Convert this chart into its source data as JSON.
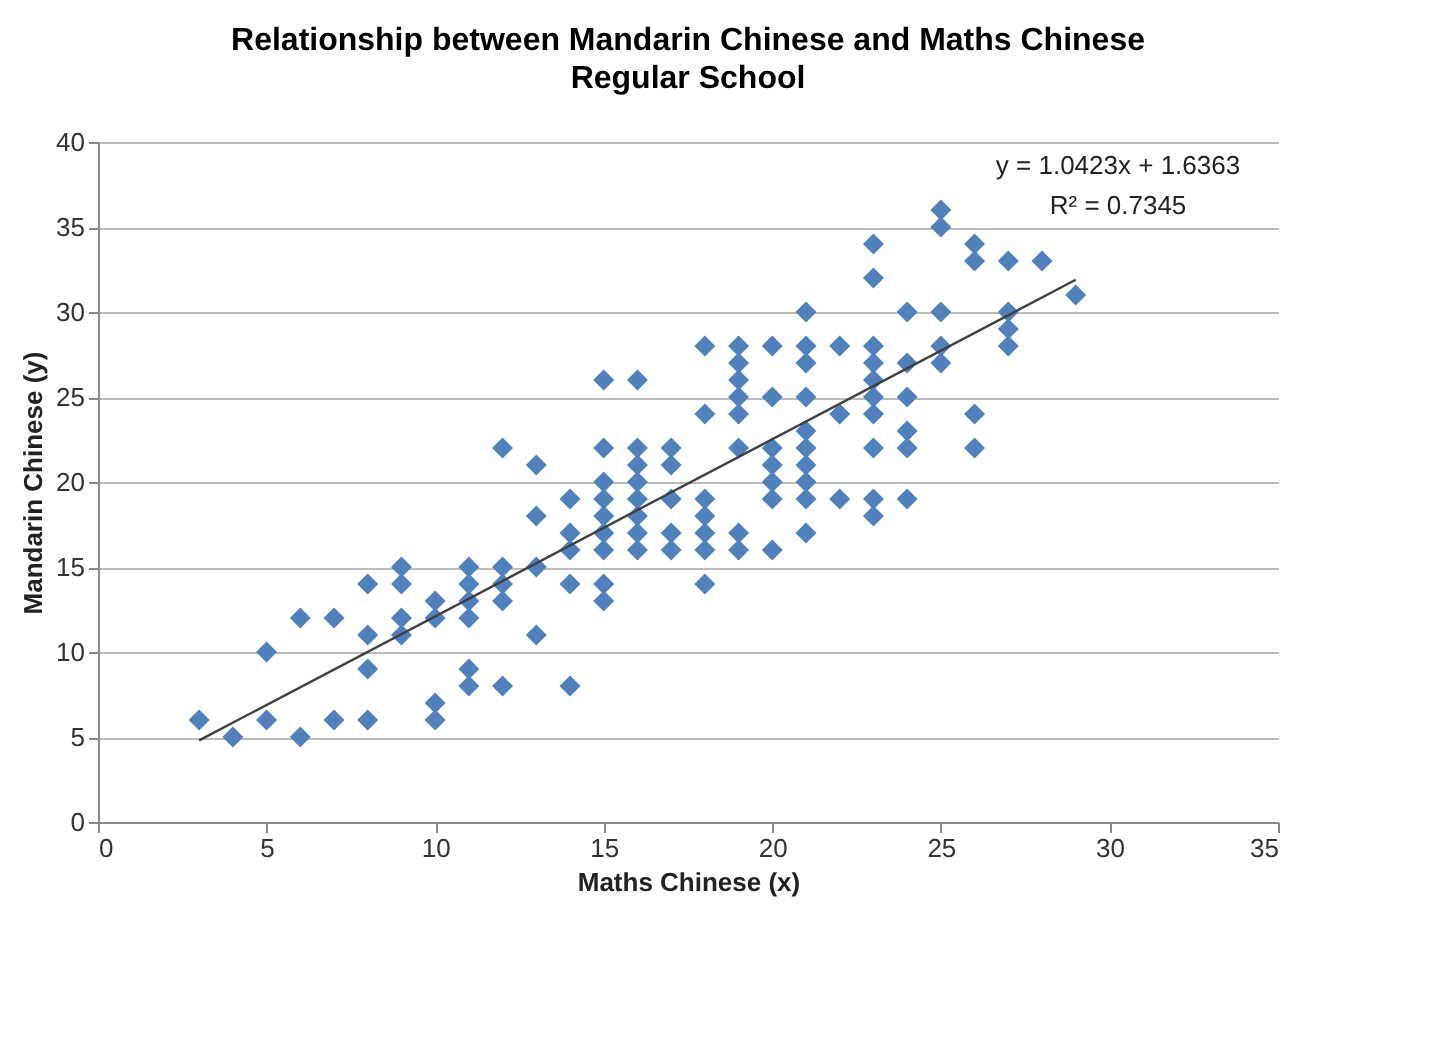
{
  "chart_data": {
    "type": "scatter",
    "title": "Relationship between Mandarin Chinese and Maths Chinese",
    "subtitle": "Regular School",
    "xlabel": "Maths Chinese (x)",
    "ylabel": "Mandarin Chinese (y)",
    "xlim": [
      0,
      35
    ],
    "xticks": [
      0,
      5,
      10,
      15,
      20,
      25,
      30,
      35
    ],
    "ylim": [
      0,
      40
    ],
    "yticks": [
      0,
      5,
      10,
      15,
      20,
      25,
      30,
      35,
      40
    ],
    "grid": "y",
    "marker": "diamond",
    "annotations": [
      "y = 1.0423x + 1.6363",
      "R² = 0.7345"
    ],
    "series": [
      {
        "color": "#4f81bd",
        "x": [
          3,
          4,
          5,
          5,
          6,
          6,
          7,
          7,
          8,
          8,
          8,
          8,
          9,
          9,
          9,
          9,
          10,
          10,
          10,
          10,
          11,
          11,
          11,
          11,
          11,
          11,
          12,
          12,
          12,
          12,
          12,
          13,
          13,
          13,
          13,
          14,
          14,
          14,
          14,
          14,
          15,
          15,
          15,
          15,
          15,
          15,
          15,
          15,
          15,
          16,
          16,
          16,
          16,
          16,
          16,
          16,
          16,
          17,
          17,
          17,
          17,
          17,
          18,
          18,
          18,
          18,
          18,
          18,
          18,
          19,
          19,
          19,
          19,
          19,
          19,
          19,
          19,
          20,
          20,
          20,
          20,
          20,
          20,
          20,
          21,
          21,
          21,
          21,
          21,
          21,
          21,
          21,
          21,
          21,
          22,
          22,
          22,
          23,
          23,
          23,
          23,
          23,
          23,
          23,
          23,
          23,
          23,
          24,
          24,
          24,
          24,
          24,
          24,
          25,
          25,
          25,
          25,
          25,
          26,
          26,
          26,
          26,
          27,
          27,
          27,
          27,
          28,
          29
        ],
        "values": [
          6,
          5,
          10,
          6,
          12,
          5,
          12,
          6,
          14,
          11,
          9,
          6,
          15,
          14,
          12,
          11,
          13,
          12,
          7,
          6,
          15,
          14,
          13,
          12,
          9,
          8,
          22,
          15,
          14,
          13,
          8,
          21,
          18,
          15,
          11,
          19,
          17,
          16,
          14,
          8,
          26,
          22,
          20,
          19,
          18,
          17,
          16,
          14,
          13,
          26,
          22,
          21,
          20,
          19,
          18,
          17,
          16,
          22,
          21,
          19,
          17,
          16,
          28,
          24,
          19,
          18,
          17,
          16,
          14,
          28,
          27,
          26,
          25,
          24,
          22,
          17,
          16,
          28,
          25,
          22,
          21,
          20,
          19,
          16,
          30,
          28,
          27,
          25,
          23,
          22,
          21,
          20,
          19,
          17,
          28,
          24,
          19,
          34,
          32,
          28,
          27,
          26,
          25,
          24,
          22,
          19,
          18,
          30,
          27,
          25,
          23,
          22,
          19,
          36,
          35,
          30,
          28,
          27,
          34,
          33,
          24,
          22,
          33,
          30,
          29,
          28,
          33,
          31
        ]
      },
      {
        "type": "line",
        "marker": "none",
        "color": "#404040",
        "x": [
          3,
          29
        ],
        "values": [
          4.8,
          31.9
        ]
      }
    ]
  }
}
